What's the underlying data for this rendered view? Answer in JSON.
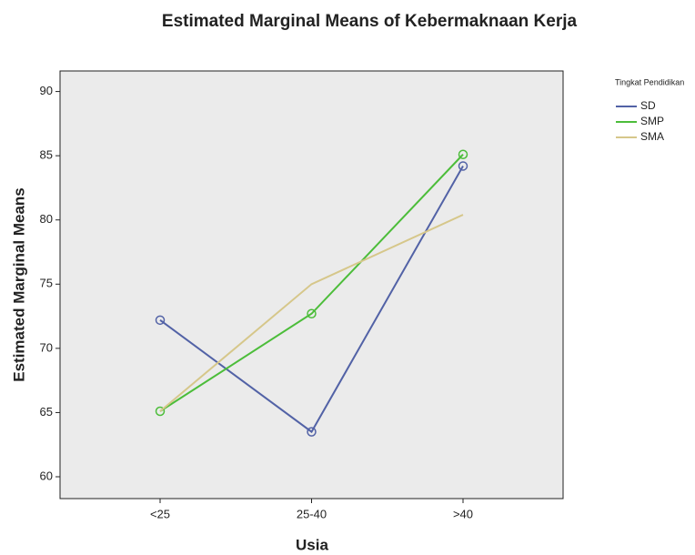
{
  "chart_data": {
    "type": "line",
    "title": "Estimated Marginal Means of Kebermaknaan Kerja",
    "x_label": "Usia",
    "y_label": "Estimated Marginal Means",
    "categories": [
      "<25",
      "25-40",
      ">40"
    ],
    "legend_title": "Tingkat Pendidikan",
    "legend": "right",
    "series": [
      {
        "name": "SD",
        "color": "#5262a6",
        "markers": true,
        "values": [
          72.2,
          63.5,
          84.2
        ]
      },
      {
        "name": "SMP",
        "color": "#4cbd3a",
        "markers": true,
        "values": [
          65.1,
          72.7,
          85.1
        ]
      },
      {
        "name": "SMA",
        "color": "#d6c78a",
        "markers": false,
        "values": [
          65.1,
          75.0,
          80.4
        ]
      }
    ],
    "ylim": [
      58.3,
      91.6
    ],
    "yticks": [
      60,
      65,
      70,
      75,
      80,
      85,
      90
    ]
  }
}
